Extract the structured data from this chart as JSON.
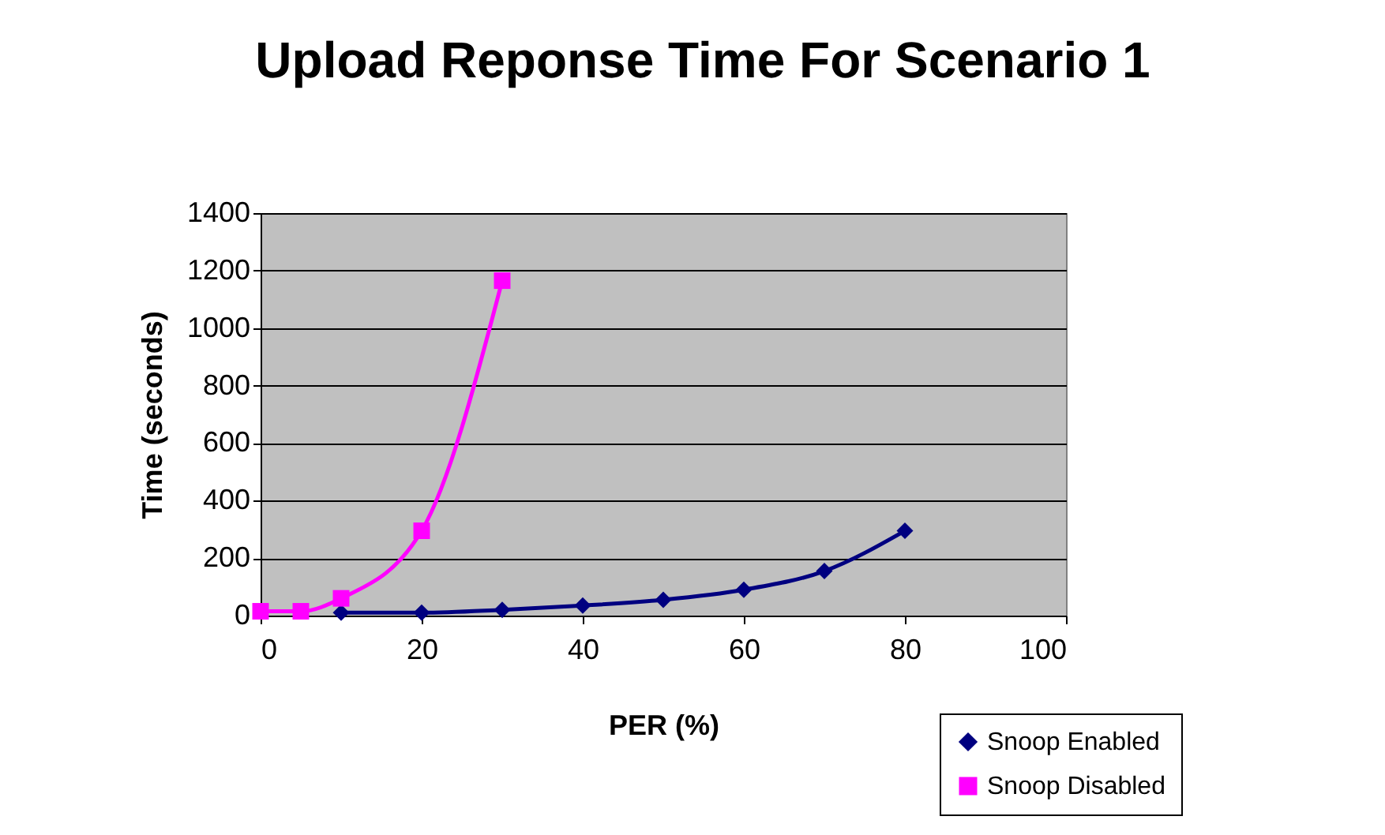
{
  "chart_data": {
    "type": "line",
    "title": "Upload Reponse Time For Scenario 1",
    "xlabel": "PER (%)",
    "ylabel": "Time (seconds)",
    "xlim": [
      0,
      100
    ],
    "xticks": [
      0,
      20,
      40,
      60,
      80,
      100
    ],
    "ylim": [
      0,
      1400
    ],
    "yticks": [
      0,
      200,
      400,
      600,
      800,
      1000,
      1200,
      1400
    ],
    "grid": "y",
    "legend": "bottom right",
    "series": [
      {
        "name": "Snoop Enabled",
        "color": "#000080",
        "marker": "diamond",
        "x": [
          10,
          20,
          30,
          40,
          50,
          60,
          70,
          80
        ],
        "values": [
          10,
          10,
          20,
          35,
          55,
          90,
          155,
          295
        ]
      },
      {
        "name": "Snoop Disabled",
        "color": "#ff00ff",
        "marker": "square",
        "x": [
          0,
          5,
          10,
          20,
          30
        ],
        "values": [
          15,
          15,
          60,
          295,
          1165
        ]
      }
    ]
  }
}
